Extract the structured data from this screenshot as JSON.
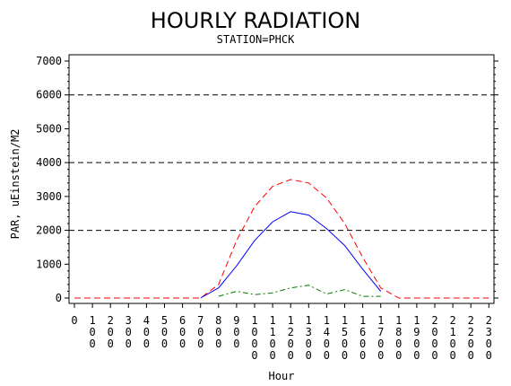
{
  "chart_data": {
    "type": "line",
    "title": "HOURLY RADIATION",
    "subtitle": "STATION=PHCK",
    "xlabel": "Hour",
    "ylabel": "PAR, uEinstein/M2",
    "ylim": [
      0,
      7000
    ],
    "yticks": [
      "0",
      "1000",
      "2000",
      "3000",
      "4000",
      "5000",
      "6000",
      "7000"
    ],
    "ytick_values": [
      0,
      1000,
      2000,
      3000,
      4000,
      5000,
      6000,
      7000
    ],
    "xticks": [
      "0",
      "100",
      "200",
      "300",
      "400",
      "500",
      "600",
      "700",
      "800",
      "900",
      "1000",
      "1100",
      "1200",
      "1300",
      "1400",
      "1500",
      "1600",
      "1700",
      "1800",
      "1900",
      "2000",
      "2100",
      "2200",
      "2300"
    ],
    "reference_lines": [
      2000,
      4000,
      6000
    ],
    "series": [
      {
        "color": "#ff0000",
        "dash": "dashed",
        "x": [
          0,
          100,
          200,
          300,
          400,
          500,
          600,
          700,
          800,
          900,
          1000,
          1100,
          1200,
          1300,
          1400,
          1500,
          1600,
          1700,
          1800,
          1900,
          2000,
          2100,
          2200,
          2300
        ],
        "values": [
          0,
          0,
          0,
          0,
          0,
          0,
          0,
          0,
          400,
          1700,
          2700,
          3300,
          3500,
          3400,
          2950,
          2200,
          1200,
          300,
          0,
          0,
          0,
          0,
          0,
          0
        ]
      },
      {
        "color": "#0000ff",
        "dash": "solid",
        "x": [
          700,
          800,
          900,
          1000,
          1100,
          1200,
          1300,
          1400,
          1500,
          1600,
          1700
        ],
        "values": [
          0,
          300,
          950,
          1700,
          2250,
          2550,
          2450,
          2050,
          1550,
          850,
          200
        ]
      },
      {
        "color": "#008000",
        "dash": "dashdot",
        "x": [
          800,
          900,
          1000,
          1100,
          1200,
          1300,
          1400,
          1500,
          1600,
          1700
        ],
        "values": [
          50,
          200,
          100,
          150,
          300,
          380,
          120,
          250,
          50,
          50
        ]
      }
    ]
  }
}
